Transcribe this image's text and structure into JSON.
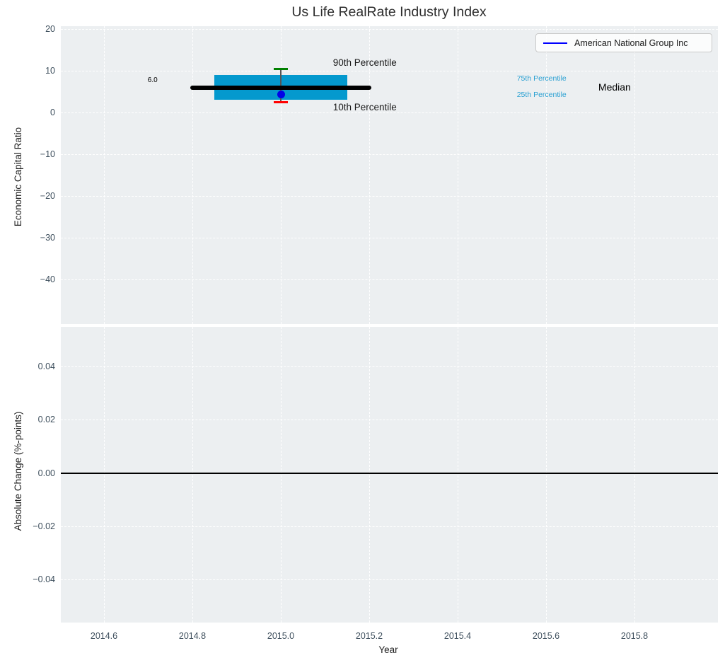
{
  "chart_data": {
    "type": "box",
    "title": "Us Life RealRate Industry Index",
    "xlabel": "Year",
    "x_axis": {
      "xlim": [
        2014.5,
        2015.99
      ],
      "ticks": [
        {
          "v": 2014.6,
          "label": "2014.6"
        },
        {
          "v": 2014.8,
          "label": "2014.8"
        },
        {
          "v": 2015.0,
          "label": "2015.0"
        },
        {
          "v": 2015.2,
          "label": "2015.2"
        },
        {
          "v": 2015.4,
          "label": "2015.4"
        },
        {
          "v": 2015.6,
          "label": "2015.6"
        },
        {
          "v": 2015.8,
          "label": "2015.8"
        }
      ]
    },
    "subplots": [
      {
        "id": "industry_index",
        "ylabel": "Economic Capital Ratio",
        "ylim": [
          -50.7,
          20.7
        ],
        "yticks": [
          {
            "v": 20,
            "label": "20"
          },
          {
            "v": 10,
            "label": "10"
          },
          {
            "v": 0,
            "label": "0"
          },
          {
            "v": -10,
            "label": "−10"
          },
          {
            "v": -20,
            "label": "−20"
          },
          {
            "v": -30,
            "label": "−30"
          },
          {
            "v": -40,
            "label": "−40"
          }
        ],
        "boxplot": {
          "x": 2015.0,
          "box_x_span": [
            2014.85,
            2015.15
          ],
          "median_x_span": [
            2014.8,
            2015.2
          ],
          "p90": 10.4,
          "p75": 8.9,
          "median": 6.0,
          "p25": 3.0,
          "p10": 2.5,
          "colors": {
            "box": "#0499ce",
            "median_line": "#000000",
            "p90_cap": "#008000",
            "p10_cap": "#ff0000",
            "whisker": "#555555"
          }
        },
        "company_point": {
          "name": "American National Group Inc",
          "x": 2015.0,
          "y": 4.4,
          "color": "#0202e8"
        },
        "annotations": [
          {
            "text": "90th Percentile",
            "x": 2015.19,
            "y": 11.8,
            "color": "#1a1a1a",
            "size": 13.5
          },
          {
            "text": "10th Percentile",
            "x": 2015.19,
            "y": 1.1,
            "color": "#1a1a1a",
            "size": 13.5
          },
          {
            "text": "75th Percentile",
            "x": 2015.59,
            "y": 8.0,
            "color": "#29a0d2",
            "size": 10.5
          },
          {
            "text": "25th Percentile",
            "x": 2015.59,
            "y": 4.1,
            "color": "#29a0d2",
            "size": 10.5
          },
          {
            "text": "Median",
            "x": 2015.755,
            "y": 6.0,
            "color": "#000000",
            "size": 14
          },
          {
            "text": "6.0",
            "x": 2014.71,
            "y": 7.6,
            "color": "#000000",
            "size": 10
          }
        ],
        "legend": {
          "entries": [
            {
              "label": "American National Group Inc",
              "line_color": "#0000ff"
            }
          ]
        }
      },
      {
        "id": "absolute_change",
        "ylabel": "Absolute Change (%-points)",
        "ylim": [
          -0.056,
          0.055
        ],
        "yticks": [
          {
            "v": 0.04,
            "label": "0.04"
          },
          {
            "v": 0.02,
            "label": "0.02"
          },
          {
            "v": 0.0,
            "label": "0.00"
          },
          {
            "v": -0.02,
            "label": "−0.02"
          },
          {
            "v": -0.04,
            "label": "−0.04"
          }
        ],
        "zero_line": {
          "y": 0.0,
          "color": "#000000"
        }
      }
    ],
    "style": {
      "plot_bg": "#eceff1",
      "grid_color": "#ffffff",
      "tick_color": "#3d4e5c",
      "title_color": "#2e2e2e"
    }
  }
}
